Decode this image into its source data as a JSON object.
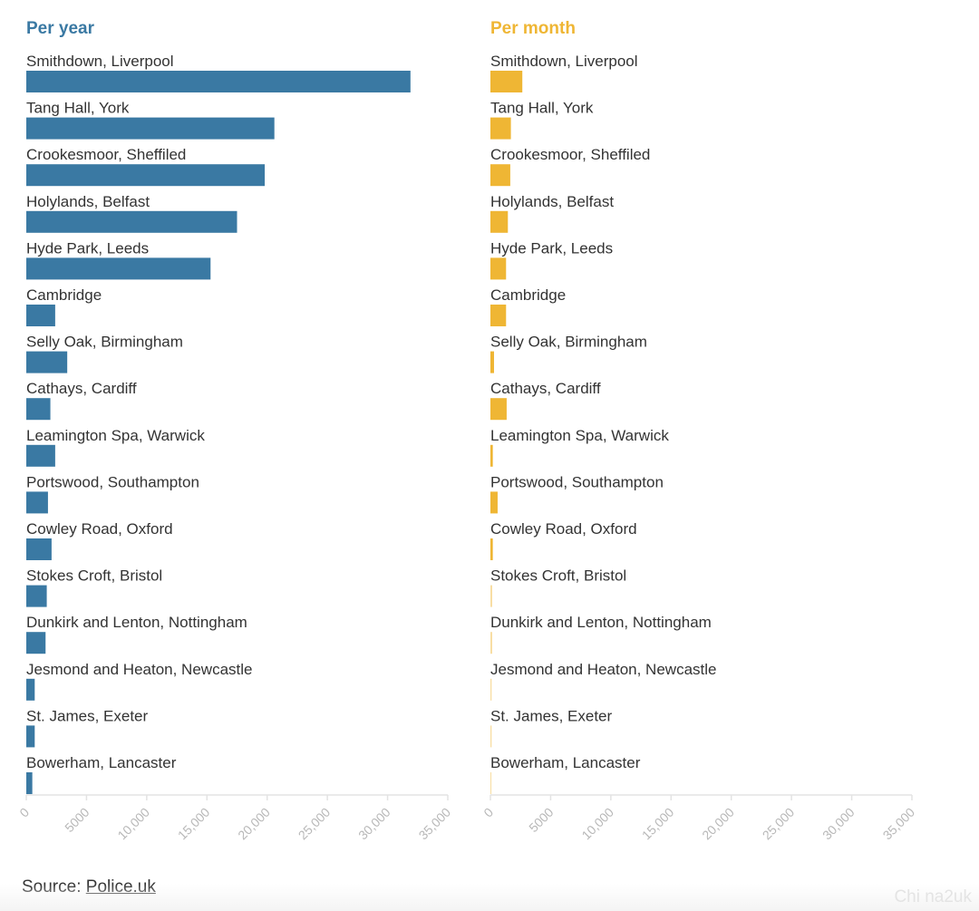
{
  "colors": {
    "per_year": "#3a79a3",
    "per_month": "#efb634",
    "axis": "#e3e3e3",
    "tick": "#b8b8b8",
    "text": "#333333"
  },
  "chart_data": [
    {
      "type": "bar",
      "orientation": "horizontal",
      "title": "Per year",
      "categories": [
        "Smithdown, Liverpool",
        "Tang Hall, York",
        "Crookesmoor, Sheffiled",
        "Holylands, Belfast",
        "Hyde Park, Leeds",
        "Cambridge",
        "Selly Oak, Birmingham",
        "Cathays, Cardiff",
        "Leamington Spa, Warwick",
        "Portswood, Southampton",
        "Cowley Road, Oxford",
        "Stokes Croft, Bristol",
        "Dunkirk and Lenton, Nottingham",
        "Jesmond and Heaton, Newcastle",
        "St. James, Exeter",
        "Bowerham, Lancaster"
      ],
      "values": [
        31900,
        20600,
        19800,
        17500,
        15300,
        2400,
        3400,
        2000,
        2400,
        1800,
        2100,
        1700,
        1600,
        700,
        700,
        500
      ],
      "xlim": [
        0,
        35000
      ],
      "ticks": [
        "0",
        "5000",
        "10,000",
        "15,000",
        "20,000",
        "25,000",
        "30,000",
        "35,000"
      ],
      "grid": false
    },
    {
      "type": "bar",
      "orientation": "horizontal",
      "title": "Per month",
      "categories": [
        "Smithdown, Liverpool",
        "Tang Hall, York",
        "Crookesmoor, Sheffiled",
        "Holylands, Belfast",
        "Hyde Park, Leeds",
        "Cambridge",
        "Selly Oak, Birmingham",
        "Cathays, Cardiff",
        "Leamington Spa, Warwick",
        "Portswood, Southampton",
        "Cowley Road, Oxford",
        "Stokes Croft, Bristol",
        "Dunkirk and Lenton, Nottingham",
        "Jesmond and Heaton, Newcastle",
        "St. James, Exeter",
        "Bowerham, Lancaster"
      ],
      "values": [
        2650,
        1700,
        1650,
        1450,
        1300,
        1300,
        300,
        1350,
        200,
        600,
        200,
        150,
        150,
        100,
        100,
        80
      ],
      "xlim": [
        0,
        35000
      ],
      "ticks": [
        "0",
        "5000",
        "10,000",
        "15,000",
        "20,000",
        "25,000",
        "30,000",
        "35,000"
      ],
      "grid": false
    }
  ],
  "source": {
    "prefix": "Source: ",
    "link": "Police.uk"
  },
  "watermark": "Chi na2uk"
}
